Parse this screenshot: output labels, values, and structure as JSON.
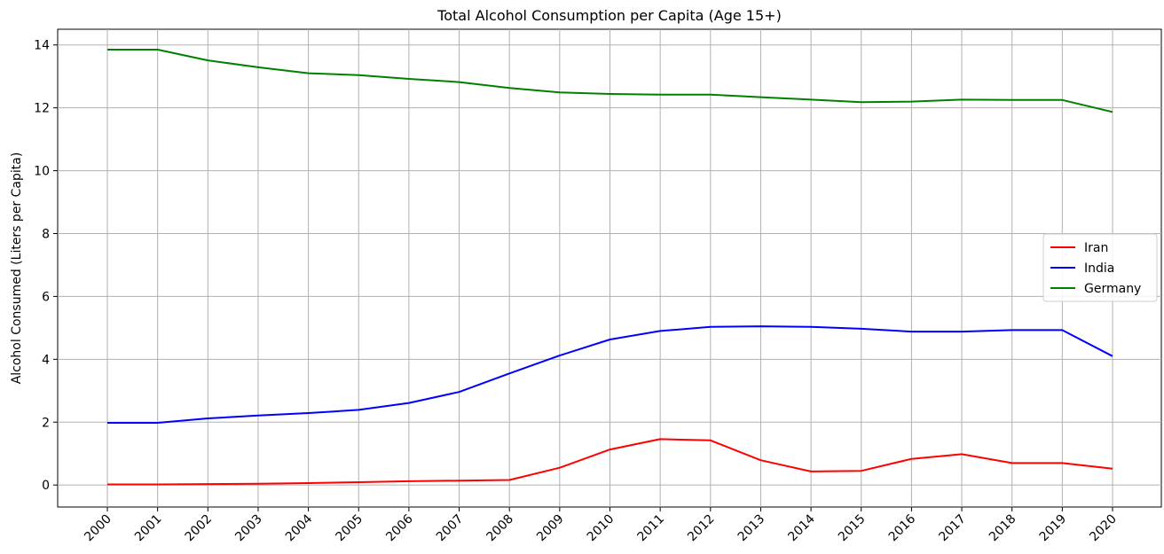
{
  "chart_data": {
    "type": "line",
    "title": "Total Alcohol Consumption per Capita (Age 15+)",
    "xlabel": "",
    "ylabel": "Alcohol Consumed (Liters per Capita)",
    "x": [
      "2000",
      "2001",
      "2002",
      "2003",
      "2004",
      "2005",
      "2006",
      "2007",
      "2008",
      "2009",
      "2010",
      "2011",
      "2012",
      "2013",
      "2014",
      "2015",
      "2016",
      "2017",
      "2018",
      "2019",
      "2020"
    ],
    "ylim": [
      -0.7,
      14.5
    ],
    "yticks": [
      0,
      2,
      4,
      6,
      8,
      10,
      12,
      14
    ],
    "grid": true,
    "legend_position": "center-right",
    "series": [
      {
        "name": "Iran",
        "color": "#ff0000",
        "values": [
          0.02,
          0.02,
          0.03,
          0.04,
          0.06,
          0.09,
          0.12,
          0.14,
          0.16,
          0.55,
          1.13,
          1.46,
          1.42,
          0.79,
          0.43,
          0.45,
          0.83,
          0.98,
          0.7,
          0.7,
          0.52
        ]
      },
      {
        "name": "India",
        "color": "#0000ff",
        "values": [
          1.98,
          1.98,
          2.12,
          2.21,
          2.29,
          2.39,
          2.61,
          2.96,
          3.55,
          4.12,
          4.63,
          4.9,
          5.03,
          5.05,
          5.03,
          4.97,
          4.88,
          4.88,
          4.93,
          4.93,
          4.1
        ]
      },
      {
        "name": "Germany",
        "color": "#008000",
        "values": [
          13.85,
          13.85,
          13.51,
          13.29,
          13.1,
          13.04,
          12.92,
          12.82,
          12.63,
          12.49,
          12.44,
          12.42,
          12.42,
          12.34,
          12.26,
          12.18,
          12.2,
          12.26,
          12.25,
          12.25,
          11.87
        ]
      }
    ]
  }
}
